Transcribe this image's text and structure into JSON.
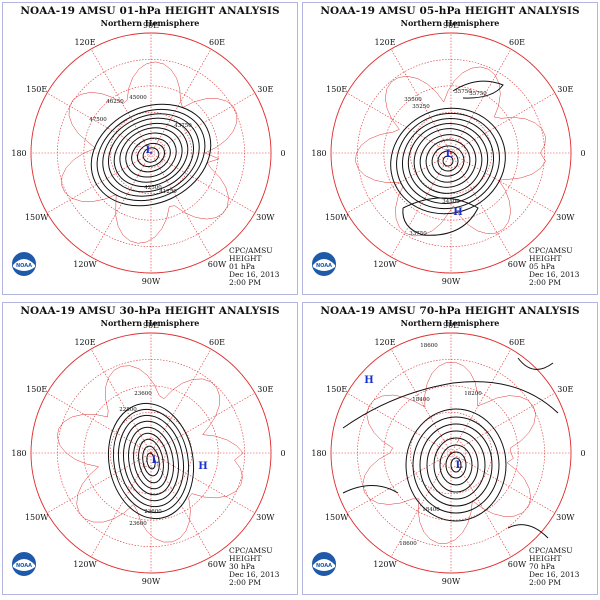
{
  "panels": [
    {
      "title": "NOAA-19 AMSU 01-hPa HEIGHT ANALYSIS",
      "subtitle": "Northern Hemisphere",
      "info": [
        "CPC/AMSU",
        "HEIGHT",
        "01 hPa",
        "Dec 16, 2013",
        "2:00 PM"
      ],
      "contour_labels": [
        "47500",
        "46250",
        "45000",
        "42500",
        "41250",
        "43750"
      ],
      "centers": [
        "L"
      ]
    },
    {
      "title": "NOAA-19 AMSU 05-hPa HEIGHT ANALYSIS",
      "subtitle": "Northern Hemisphere",
      "info": [
        "CPC/AMSU",
        "HEIGHT",
        "05 hPa",
        "Dec 16, 2013",
        "2:00 PM"
      ],
      "contour_labels": [
        "35500",
        "35750",
        "35250",
        "34500",
        "33750",
        "35750"
      ],
      "centers": [
        "L",
        "H"
      ]
    },
    {
      "title": "NOAA-19 AMSU 30-hPa HEIGHT ANALYSIS",
      "subtitle": "Northern Hemisphere",
      "info": [
        "CPC/AMSU",
        "HEIGHT",
        "30 hPa",
        "Dec 16, 2013",
        "2:00 PM"
      ],
      "contour_labels": [
        "23600",
        "22800",
        "23600",
        "23600"
      ],
      "centers": [
        "L",
        "H"
      ]
    },
    {
      "title": "NOAA-19 AMSU 70-hPa HEIGHT ANALYSIS",
      "subtitle": "Northern Hemisphere",
      "info": [
        "CPC/AMSU",
        "HEIGHT",
        "70 hPa",
        "Dec 16, 2013",
        "2:00 PM"
      ],
      "contour_labels": [
        "18600",
        "18400",
        "18200",
        "18600",
        "18400"
      ],
      "centers": [
        "H",
        "L"
      ]
    }
  ],
  "lon_labels": [
    "90E",
    "60E",
    "30E",
    "0",
    "30W",
    "60W",
    "90W",
    "120W",
    "150W",
    "180",
    "150E",
    "120E"
  ],
  "logo_text": "NOAA",
  "colors": {
    "grid": "#e03030",
    "contour": "#111111",
    "center": "#1a2fd0",
    "border": "#b4b4e0",
    "logo": "#1e5aa8"
  }
}
